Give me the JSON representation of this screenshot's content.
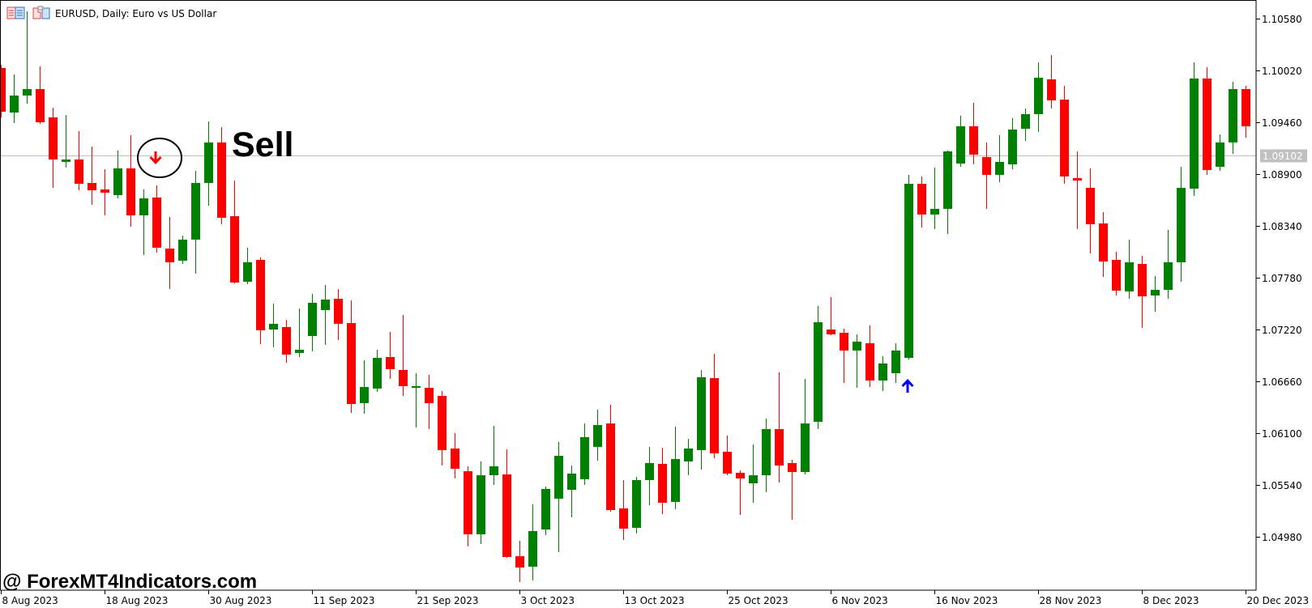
{
  "header": {
    "title": "EURUSD, Daily:  Euro vs US Dollar",
    "icons": [
      "chart-window-icon",
      "symbol-properties-icon"
    ]
  },
  "annotations": {
    "sell_label": "Sell",
    "sell_arrow_date": "2023-08-24",
    "buy_arrow_date": "2023-11-14",
    "watermark": "@ ForexMT4Indicators.com"
  },
  "colors": {
    "bull": "#008000",
    "bear": "#ff0000",
    "sell_arrow": "#ff0000",
    "buy_arrow": "#0000ff",
    "bid_line": "#c0c0c0",
    "background": "#ffffff"
  },
  "chart_data": {
    "type": "candlestick",
    "symbol": "EURUSD",
    "timeframe": "Daily",
    "ylim": [
      1.0434,
      1.1077
    ],
    "grid": false,
    "current_price": "1.09102",
    "y_ticks": [
      "1.10580",
      "1.10020",
      "1.09460",
      "1.08900",
      "1.08340",
      "1.07780",
      "1.07220",
      "1.06660",
      "1.06100",
      "1.05540",
      "1.04980"
    ],
    "x_ticks": [
      {
        "date": "2023-08-08",
        "label": "8 Aug 2023"
      },
      {
        "date": "2023-08-18",
        "label": "18 Aug 2023"
      },
      {
        "date": "2023-08-30",
        "label": "30 Aug 2023"
      },
      {
        "date": "2023-09-11",
        "label": "11 Sep 2023"
      },
      {
        "date": "2023-09-21",
        "label": "21 Sep 2023"
      },
      {
        "date": "2023-10-03",
        "label": "3 Oct 2023"
      },
      {
        "date": "2023-10-13",
        "label": "13 Oct 2023"
      },
      {
        "date": "2023-10-25",
        "label": "25 Oct 2023"
      },
      {
        "date": "2023-11-06",
        "label": "6 Nov 2023"
      },
      {
        "date": "2023-11-16",
        "label": "16 Nov 2023"
      },
      {
        "date": "2023-11-28",
        "label": "28 Nov 2023"
      },
      {
        "date": "2023-12-08",
        "label": "8 Dec 2023"
      },
      {
        "date": "2023-12-20",
        "label": "20 Dec 2023"
      }
    ],
    "columns": [
      "date",
      "open",
      "high",
      "low",
      "close"
    ],
    "candles": [
      [
        "2023-08-08",
        1.10044,
        1.10079,
        1.0951,
        1.09571
      ],
      [
        "2023-08-09",
        1.09562,
        1.09974,
        1.09449,
        1.09746
      ],
      [
        "2023-08-10",
        1.09746,
        1.10656,
        1.09659,
        1.09816
      ],
      [
        "2023-08-11",
        1.09816,
        1.10061,
        1.0944,
        1.09457
      ],
      [
        "2023-08-14",
        1.0951,
        1.09615,
        1.08749,
        1.09055
      ],
      [
        "2023-08-15",
        1.09029,
        1.09536,
        1.08967,
        1.09055
      ],
      [
        "2023-08-16",
        1.09055,
        1.09361,
        1.08722,
        1.08792
      ],
      [
        "2023-08-17",
        1.08801,
        1.09195,
        1.08565,
        1.08722
      ],
      [
        "2023-08-18",
        1.08731,
        1.0895,
        1.08451,
        1.08696
      ],
      [
        "2023-08-21",
        1.0867,
        1.09151,
        1.08635,
        1.08959
      ],
      [
        "2023-08-22",
        1.08959,
        1.09317,
        1.08329,
        1.08451
      ],
      [
        "2023-08-23",
        1.08451,
        1.08731,
        1.08022,
        1.08635
      ],
      [
        "2023-08-24",
        1.08644,
        1.08775,
        1.08049,
        1.08101
      ],
      [
        "2023-08-25",
        1.08092,
        1.08434,
        1.07655,
        1.07944
      ],
      [
        "2023-08-28",
        1.07961,
        1.08232,
        1.07926,
        1.08189
      ],
      [
        "2023-08-29",
        1.08189,
        1.08932,
        1.07821,
        1.08801
      ],
      [
        "2023-08-30",
        1.08801,
        1.09466,
        1.08556,
        1.09239
      ],
      [
        "2023-08-31",
        1.09239,
        1.09405,
        1.08355,
        1.08425
      ],
      [
        "2023-09-01",
        1.08442,
        1.08827,
        1.07716,
        1.07725
      ],
      [
        "2023-09-04",
        1.07734,
        1.08101,
        1.07707,
        1.07944
      ],
      [
        "2023-09-05",
        1.0797,
        1.07996,
        1.0706,
        1.07209
      ],
      [
        "2023-09-06",
        1.07217,
        1.07497,
        1.07025,
        1.07279
      ],
      [
        "2023-09-07",
        1.07244,
        1.07322,
        1.06859,
        1.06946
      ],
      [
        "2023-09-08",
        1.06964,
        1.07445,
        1.0692,
        1.06999
      ],
      [
        "2023-09-11",
        1.07147,
        1.07602,
        1.06981,
        1.07506
      ],
      [
        "2023-09-12",
        1.07427,
        1.07699,
        1.07051,
        1.07541
      ],
      [
        "2023-09-13",
        1.0755,
        1.07655,
        1.07104,
        1.07279
      ],
      [
        "2023-09-14",
        1.07287,
        1.07532,
        1.06316,
        1.06412
      ],
      [
        "2023-09-15",
        1.06421,
        1.06885,
        1.06307,
        1.06596
      ],
      [
        "2023-09-18",
        1.06579,
        1.06999,
        1.06544,
        1.06911
      ],
      [
        "2023-09-19",
        1.0692,
        1.07191,
        1.06684,
        1.06789
      ],
      [
        "2023-09-20",
        1.0678,
        1.07375,
        1.065,
        1.06605
      ],
      [
        "2023-09-21",
        1.066,
        1.06745,
        1.06159,
        1.06605
      ],
      [
        "2023-09-22",
        1.06587,
        1.06727,
        1.06141,
        1.06421
      ],
      [
        "2023-09-25",
        1.065,
        1.06552,
        1.05747,
        1.05914
      ],
      [
        "2023-09-26",
        1.05931,
        1.06097,
        1.05607,
        1.05712
      ],
      [
        "2023-09-27",
        1.05686,
        1.05739,
        1.04872,
        1.05004
      ],
      [
        "2023-09-28",
        1.05004,
        1.05791,
        1.04899,
        1.05642
      ],
      [
        "2023-09-29",
        1.05642,
        1.06176,
        1.05537,
        1.05739
      ],
      [
        "2023-10-02",
        1.05651,
        1.05922,
        1.0475,
        1.04759
      ],
      [
        "2023-10-03",
        1.04767,
        1.04934,
        1.04487,
        1.04645
      ],
      [
        "2023-10-04",
        1.04654,
        1.05327,
        1.04505,
        1.05039
      ],
      [
        "2023-10-05",
        1.05056,
        1.0552,
        1.04995,
        1.05494
      ],
      [
        "2023-10-06",
        1.05389,
        1.06001,
        1.04811,
        1.05852
      ],
      [
        "2023-10-09",
        1.05485,
        1.05747,
        1.05187,
        1.0566
      ],
      [
        "2023-10-10",
        1.05599,
        1.06202,
        1.05537,
        1.06054
      ],
      [
        "2023-10-11",
        1.05949,
        1.06351,
        1.058,
        1.06185
      ],
      [
        "2023-10-12",
        1.06202,
        1.06404,
        1.05249,
        1.05266
      ],
      [
        "2023-10-13",
        1.05284,
        1.0559,
        1.04942,
        1.05065
      ],
      [
        "2023-10-16",
        1.05074,
        1.05625,
        1.05012,
        1.0559
      ],
      [
        "2023-10-17",
        1.0559,
        1.05949,
        1.05319,
        1.05774
      ],
      [
        "2023-10-18",
        1.05765,
        1.0594,
        1.05222,
        1.05345
      ],
      [
        "2023-10-19",
        1.05354,
        1.06167,
        1.05275,
        1.05817
      ],
      [
        "2023-10-20",
        1.05791,
        1.06036,
        1.05642,
        1.05931
      ],
      [
        "2023-10-23",
        1.05914,
        1.0678,
        1.05704,
        1.06701
      ],
      [
        "2023-10-24",
        1.06692,
        1.06955,
        1.05826,
        1.05879
      ],
      [
        "2023-10-25",
        1.05896,
        1.06071,
        1.05642,
        1.0566
      ],
      [
        "2023-10-26",
        1.05669,
        1.05695,
        1.05214,
        1.05607
      ],
      [
        "2023-10-27",
        1.05555,
        1.05975,
        1.05345,
        1.05642
      ],
      [
        "2023-10-30",
        1.05642,
        1.06255,
        1.05459,
        1.06141
      ],
      [
        "2023-10-31",
        1.06141,
        1.06754,
        1.05564,
        1.05747
      ],
      [
        "2023-11-01",
        1.05774,
        1.05809,
        1.05161,
        1.05677
      ],
      [
        "2023-11-02",
        1.05677,
        1.06684,
        1.05651,
        1.06202
      ],
      [
        "2023-11-03",
        1.0622,
        1.07471,
        1.06141,
        1.07296
      ],
      [
        "2023-11-06",
        1.07217,
        1.07567,
        1.07156,
        1.07165
      ],
      [
        "2023-11-07",
        1.07182,
        1.07226,
        1.0664,
        1.0699
      ],
      [
        "2023-11-08",
        1.0699,
        1.07165,
        1.06587,
        1.07086
      ],
      [
        "2023-11-09",
        1.07069,
        1.07261,
        1.06596,
        1.06666
      ],
      [
        "2023-11-10",
        1.06666,
        1.06929,
        1.06552,
        1.0685
      ],
      [
        "2023-11-13",
        1.06745,
        1.07069,
        1.0664,
        1.0699
      ],
      [
        "2023-11-14",
        1.06911,
        1.08889,
        1.06894,
        1.08792
      ],
      [
        "2023-11-15",
        1.08792,
        1.08871,
        1.0832,
        1.0846
      ],
      [
        "2023-11-16",
        1.0846,
        1.08967,
        1.08302,
        1.08521
      ],
      [
        "2023-11-17",
        1.08521,
        1.09151,
        1.0825,
        1.09142
      ],
      [
        "2023-11-20",
        1.09011,
        1.09527,
        1.08976,
        1.09414
      ],
      [
        "2023-11-21",
        1.09414,
        1.09667,
        1.09002,
        1.09107
      ],
      [
        "2023-11-22",
        1.09081,
        1.09239,
        1.08521,
        1.08889
      ],
      [
        "2023-11-23",
        1.08889,
        1.09317,
        1.0881,
        1.09029
      ],
      [
        "2023-11-24",
        1.09002,
        1.09501,
        1.0895,
        1.09379
      ],
      [
        "2023-11-27",
        1.09387,
        1.09606,
        1.09256,
        1.09545
      ],
      [
        "2023-11-28",
        1.09545,
        1.10105,
        1.09352,
        1.09939
      ],
      [
        "2023-11-29",
        1.09921,
        1.10184,
        1.09606,
        1.09694
      ],
      [
        "2023-11-30",
        1.09702,
        1.09851,
        1.08792,
        1.08871
      ],
      [
        "2023-12-01",
        1.08854,
        1.09142,
        1.08302,
        1.08827
      ],
      [
        "2023-12-04",
        1.08749,
        1.08959,
        1.0804,
        1.08355
      ],
      [
        "2023-12-05",
        1.08364,
        1.08486,
        1.07786,
        1.07952
      ],
      [
        "2023-12-06",
        1.0797,
        1.08057,
        1.07585,
        1.07637
      ],
      [
        "2023-12-07",
        1.07629,
        1.08189,
        1.0755,
        1.07944
      ],
      [
        "2023-12-08",
        1.07926,
        1.08014,
        1.07235,
        1.07576
      ],
      [
        "2023-12-11",
        1.07585,
        1.07795,
        1.0741,
        1.07646
      ],
      [
        "2023-12-12",
        1.07646,
        1.08294,
        1.0755,
        1.07944
      ],
      [
        "2023-12-13",
        1.07944,
        1.08976,
        1.07734,
        1.08749
      ],
      [
        "2023-12-14",
        1.0874,
        1.10105,
        1.08661,
        1.0993
      ],
      [
        "2023-12-15",
        1.0993,
        1.10052,
        1.08889,
        1.08941
      ],
      [
        "2023-12-18",
        1.08976,
        1.09326,
        1.08932,
        1.09239
      ],
      [
        "2023-12-19",
        1.09239,
        1.09895,
        1.09116,
        1.09816
      ],
      [
        "2023-12-20",
        1.09816,
        1.09851,
        1.09291,
        1.09414
      ]
    ]
  }
}
